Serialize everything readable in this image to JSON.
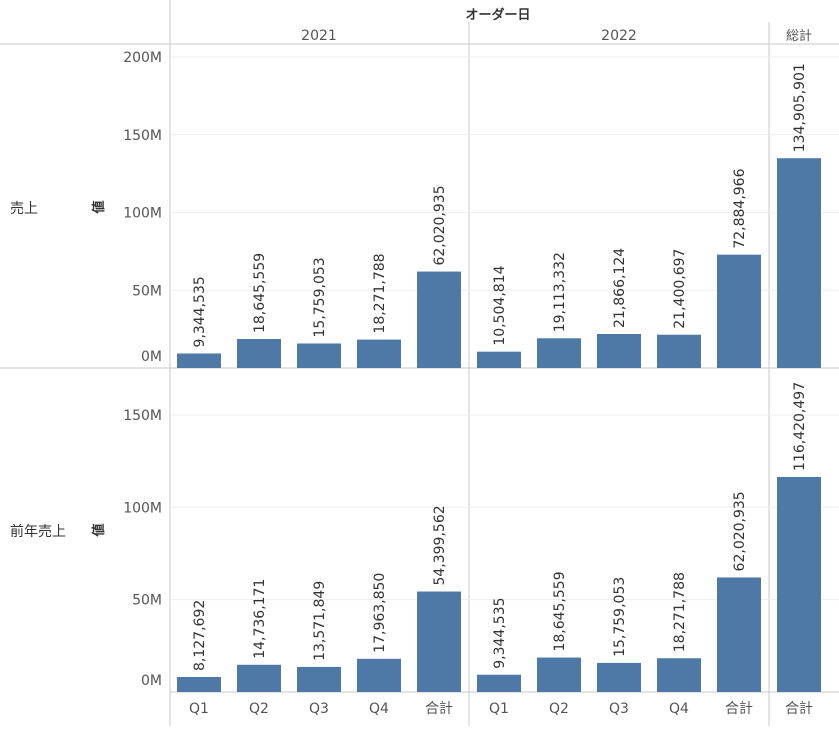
{
  "header": {
    "field_title": "オーダー日",
    "years": [
      "2021",
      "2022"
    ],
    "grand_total_label": "総計"
  },
  "colors": {
    "bar": "#4e79a7",
    "text": "#555555",
    "value_text": "#333333",
    "gridline": "#eeeeee",
    "divider": "#c8c8c8"
  },
  "chart_data": {
    "type": "bar",
    "categories": [
      "Q1",
      "Q2",
      "Q3",
      "Q4",
      "合計"
    ],
    "grand_total_category": "合計",
    "groups": [
      "2021",
      "2022"
    ],
    "value_axis_title": "値",
    "rows": [
      {
        "label": "売上",
        "ylim": [
          0,
          200000000
        ],
        "ticks": [
          {
            "value": 0,
            "label": "0M"
          },
          {
            "value": 50000000,
            "label": "50M"
          },
          {
            "value": 100000000,
            "label": "100M"
          },
          {
            "value": 150000000,
            "label": "150M"
          },
          {
            "value": 200000000,
            "label": "200M"
          }
        ],
        "values": {
          "2021": [
            9344535,
            18645559,
            15759053,
            18271788,
            62020935
          ],
          "2022": [
            10504814,
            19113332,
            21866124,
            21400697,
            72884966
          ]
        },
        "grand_total": 134905901,
        "value_labels": {
          "2021": [
            "9,344,535",
            "18,645,559",
            "15,759,053",
            "18,271,788",
            "62,020,935"
          ],
          "2022": [
            "10,504,814",
            "19,113,332",
            "21,866,124",
            "21,400,697",
            "72,884,966"
          ]
        },
        "grand_total_label": "134,905,901"
      },
      {
        "label": "前年売上",
        "ylim": [
          0,
          170000000
        ],
        "ticks": [
          {
            "value": 0,
            "label": "0M"
          },
          {
            "value": 50000000,
            "label": "50M"
          },
          {
            "value": 100000000,
            "label": "100M"
          },
          {
            "value": 150000000,
            "label": "150M"
          }
        ],
        "values": {
          "2021": [
            8127692,
            14736171,
            13571849,
            17963850,
            54399562
          ],
          "2022": [
            9344535,
            18645559,
            15759053,
            18271788,
            62020935
          ]
        },
        "grand_total": 116420497,
        "value_labels": {
          "2021": [
            "8,127,692",
            "14,736,171",
            "13,571,849",
            "17,963,850",
            "54,399,562"
          ],
          "2022": [
            "9,344,535",
            "18,645,559",
            "15,759,053",
            "18,271,788",
            "62,020,935"
          ]
        },
        "grand_total_label": "116,420,497"
      }
    ]
  }
}
